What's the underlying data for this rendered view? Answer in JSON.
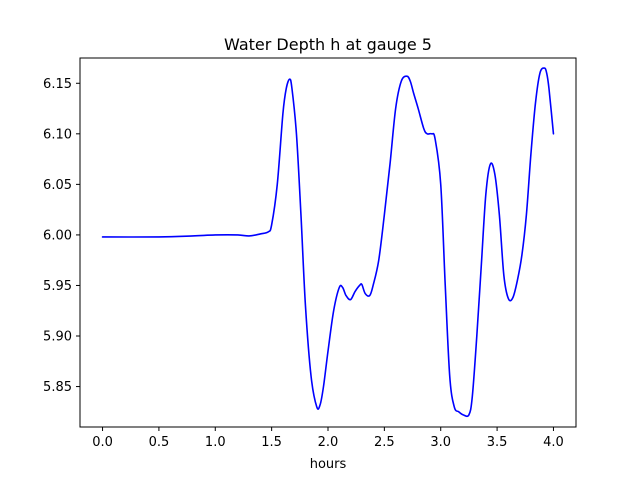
{
  "chart_data": {
    "type": "line",
    "title": "Water Depth h at gauge 5",
    "xlabel": "hours",
    "ylabel": "",
    "xlim": [
      -0.2,
      4.2
    ],
    "ylim": [
      5.81,
      6.175
    ],
    "xticks": [
      0.0,
      0.5,
      1.0,
      1.5,
      2.0,
      2.5,
      3.0,
      3.5,
      4.0
    ],
    "xtick_labels": [
      "0.0",
      "0.5",
      "1.0",
      "1.5",
      "2.0",
      "2.5",
      "3.0",
      "3.5",
      "4.0"
    ],
    "yticks": [
      5.85,
      5.9,
      5.95,
      6.0,
      6.05,
      6.1,
      6.15
    ],
    "ytick_labels": [
      "5.85",
      "5.90",
      "5.95",
      "6.00",
      "6.05",
      "6.10",
      "6.15"
    ],
    "grid": false,
    "series": [
      {
        "color": "#0000ff",
        "x": [
          0.0,
          0.5,
          0.8,
          1.0,
          1.2,
          1.3,
          1.4,
          1.47,
          1.5,
          1.55,
          1.6,
          1.63,
          1.66,
          1.68,
          1.72,
          1.76,
          1.8,
          1.85,
          1.9,
          1.93,
          1.96,
          2.0,
          2.05,
          2.1,
          2.13,
          2.16,
          2.2,
          2.24,
          2.28,
          2.3,
          2.33,
          2.37,
          2.4,
          2.45,
          2.5,
          2.55,
          2.6,
          2.65,
          2.7,
          2.73,
          2.76,
          2.8,
          2.85,
          2.88,
          2.92,
          2.95,
          3.0,
          3.04,
          3.08,
          3.12,
          3.16,
          3.2,
          3.25,
          3.28,
          3.32,
          3.36,
          3.4,
          3.44,
          3.48,
          3.52,
          3.56,
          3.6,
          3.64,
          3.68,
          3.72,
          3.76,
          3.8,
          3.84,
          3.88,
          3.92,
          3.94,
          3.96,
          4.0
        ],
        "y": [
          5.998,
          5.998,
          5.999,
          6.0,
          6.0,
          5.999,
          6.001,
          6.003,
          6.01,
          6.05,
          6.12,
          6.145,
          6.154,
          6.145,
          6.1,
          6.02,
          5.93,
          5.86,
          5.83,
          5.832,
          5.85,
          5.885,
          5.925,
          5.948,
          5.948,
          5.94,
          5.936,
          5.944,
          5.95,
          5.951,
          5.942,
          5.94,
          5.95,
          5.975,
          6.02,
          6.07,
          6.125,
          6.152,
          6.157,
          6.152,
          6.14,
          6.125,
          6.105,
          6.1,
          6.1,
          6.095,
          6.05,
          5.95,
          5.86,
          5.83,
          5.825,
          5.822,
          5.822,
          5.84,
          5.9,
          5.97,
          6.04,
          6.07,
          6.06,
          6.02,
          5.96,
          5.937,
          5.938,
          5.955,
          5.98,
          6.02,
          6.08,
          6.13,
          6.16,
          6.165,
          6.16,
          6.145,
          6.1
        ]
      }
    ]
  }
}
